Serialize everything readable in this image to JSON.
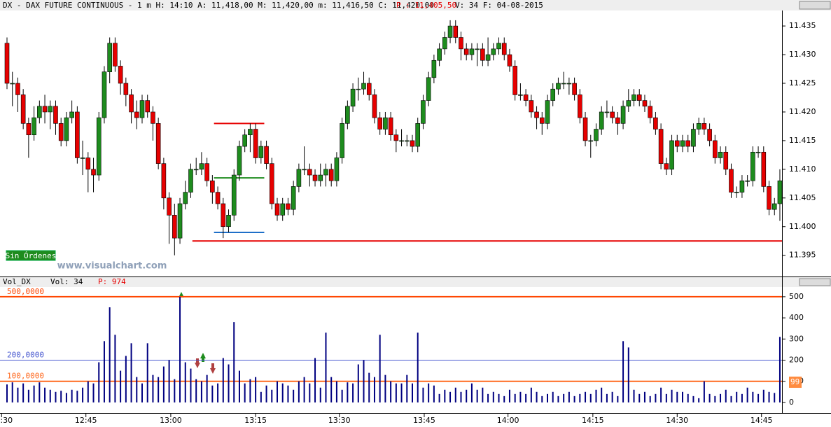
{
  "header": {
    "left": "DX - DAX FUTURE CONTINUOUS -  1 m H: 14:10 A: 11,418,00 M: 11,420,00 m: 11,416,50 C: 11,420,00",
    "price": "P : 11,405,50",
    "right": "V: 34 F: 04-08-2015"
  },
  "orders_button": "Sin Órdenes",
  "watermark": "www.visualchart.com",
  "chart_data": [
    {
      "type": "candlestick",
      "up_color": "#1e8c1e",
      "down_color": "#e60000",
      "xlim": [
        -1.3,
        143.7
      ],
      "xticks": [
        {
          "value": -1.0,
          "label": "12:30"
        },
        {
          "value": 14.6,
          "label": "12:45"
        },
        {
          "value": 30.3,
          "label": "13:00"
        },
        {
          "value": 46,
          "label": "13:15"
        },
        {
          "value": 61.5,
          "label": "13:30"
        },
        {
          "value": 77.2,
          "label": "13:45"
        },
        {
          "value": 92.7,
          "label": "14:00"
        },
        {
          "value": 108.4,
          "label": "14:15"
        },
        {
          "value": 124,
          "label": "14:30"
        },
        {
          "value": 139.6,
          "label": "14:45"
        }
      ],
      "ylim": [
        11391.3,
        11437.7
      ],
      "yticks": [
        {
          "value": 11395,
          "label": "11.395"
        },
        {
          "value": 11400,
          "label": "11.400"
        },
        {
          "value": 11405,
          "label": "11.405"
        },
        {
          "value": 11410,
          "label": "11.410"
        },
        {
          "value": 11415,
          "label": "11.415"
        },
        {
          "value": 11420,
          "label": "11.420"
        },
        {
          "value": 11425,
          "label": "11.425"
        },
        {
          "value": 11430,
          "label": "11.430"
        },
        {
          "value": 11435,
          "label": "11.435"
        }
      ],
      "levels": [
        {
          "value": 11418,
          "color": "#e60000",
          "x": [
            38.3,
            47.6
          ]
        },
        {
          "value": 11408.5,
          "color": "#1e8c1e",
          "x": [
            38.3,
            47.6
          ]
        },
        {
          "value": 11399,
          "color": "#1e6fc8",
          "x": [
            38.3,
            47.6
          ]
        },
        {
          "value": 11397.5,
          "color": "#e60000",
          "x": [
            34.3,
            143.7
          ]
        }
      ],
      "candles": [
        [
          11432,
          11433,
          11424,
          11425
        ],
        [
          11425,
          11427,
          11421,
          11425
        ],
        [
          11425,
          11426,
          11420,
          11423
        ],
        [
          11423,
          11424,
          11417,
          11418
        ],
        [
          11418,
          11419,
          11412,
          11416
        ],
        [
          11416,
          11421,
          11415,
          11419
        ],
        [
          11419,
          11422,
          11418,
          11421
        ],
        [
          11421,
          11423,
          11418,
          11420
        ],
        [
          11420,
          11422,
          11417,
          11421
        ],
        [
          11421,
          11422,
          11416,
          11418
        ],
        [
          11418,
          11419,
          11414,
          11415
        ],
        [
          11415,
          11420,
          11414,
          11419
        ],
        [
          11419,
          11422,
          11418,
          11420
        ],
        [
          11420,
          11421,
          11411,
          11412
        ],
        [
          11412,
          11415,
          11409,
          11412
        ],
        [
          11412,
          11413,
          11406,
          11410
        ],
        [
          11410,
          11412,
          11406,
          11409
        ],
        [
          11409,
          11420,
          11408,
          11419
        ],
        [
          11419,
          11428,
          11418,
          11427
        ],
        [
          11427,
          11433,
          11425,
          11432
        ],
        [
          11432,
          11433,
          11427,
          11428
        ],
        [
          11428,
          11429,
          11423,
          11425
        ],
        [
          11425,
          11426,
          11421,
          11423
        ],
        [
          11423,
          11424,
          11418,
          11420
        ],
        [
          11420,
          11422,
          11417,
          11419
        ],
        [
          11419,
          11423,
          11418,
          11422
        ],
        [
          11422,
          11423,
          11419,
          11420
        ],
        [
          11420,
          11421,
          11415,
          11418
        ],
        [
          11418,
          11419,
          11410,
          11411
        ],
        [
          11411,
          11412,
          11403,
          11405
        ],
        [
          11405,
          11406,
          11397,
          11402
        ],
        [
          11402,
          11404,
          11395,
          11398
        ],
        [
          11398,
          11405,
          11397,
          11404
        ],
        [
          11404,
          11408,
          11403,
          11406
        ],
        [
          11406,
          11411,
          11405,
          11410
        ],
        [
          11410,
          11412,
          11409,
          11410
        ],
        [
          11410,
          11413,
          11409,
          11411
        ],
        [
          11411,
          11412,
          11407,
          11408
        ],
        [
          11408,
          11409,
          11404,
          11406
        ],
        [
          11406,
          11407,
          11403,
          11404
        ],
        [
          11404,
          11405,
          11398,
          11400
        ],
        [
          11400,
          11403,
          11399,
          11402
        ],
        [
          11402,
          11410,
          11401,
          11409
        ],
        [
          11409,
          11415,
          11408,
          11414
        ],
        [
          11414,
          11417,
          11413,
          11416
        ],
        [
          11416,
          11418,
          11413,
          11417
        ],
        [
          11417,
          11418,
          11411,
          11412
        ],
        [
          11412,
          11415,
          11411,
          11414
        ],
        [
          11414,
          11415,
          11410,
          11411
        ],
        [
          11411,
          11412,
          11403,
          11404
        ],
        [
          11404,
          11405,
          11401,
          11402
        ],
        [
          11402,
          11405,
          11401,
          11404
        ],
        [
          11404,
          11405,
          11402,
          11403
        ],
        [
          11403,
          11408,
          11402,
          11407
        ],
        [
          11407,
          11411,
          11406,
          11410
        ],
        [
          11410,
          11414,
          11409,
          11410
        ],
        [
          11410,
          11411,
          11407,
          11409
        ],
        [
          11409,
          11410,
          11407,
          11408
        ],
        [
          11408,
          11411,
          11407,
          11409
        ],
        [
          11409,
          11411,
          11407,
          11410
        ],
        [
          11410,
          11411,
          11407,
          11408
        ],
        [
          11408,
          11413,
          11407,
          11412
        ],
        [
          11412,
          11419,
          11411,
          11418
        ],
        [
          11418,
          11422,
          11417,
          11421
        ],
        [
          11421,
          11425,
          11420,
          11424
        ],
        [
          11424,
          11426,
          11422,
          11424
        ],
        [
          11424,
          11427,
          11423,
          11425
        ],
        [
          11425,
          11426,
          11422,
          11423
        ],
        [
          11423,
          11424,
          11418,
          11419
        ],
        [
          11419,
          11420,
          11416,
          11417
        ],
        [
          11417,
          11420,
          11416,
          11419
        ],
        [
          11419,
          11420,
          11415,
          11416
        ],
        [
          11416,
          11417,
          11413,
          11415
        ],
        [
          11415,
          11417,
          11414,
          11415
        ],
        [
          11415,
          11416,
          11414,
          11415
        ],
        [
          11415,
          11416,
          11413,
          11414
        ],
        [
          11414,
          11419,
          11413,
          11418
        ],
        [
          11418,
          11423,
          11417,
          11422
        ],
        [
          11422,
          11427,
          11421,
          11426
        ],
        [
          11426,
          11430,
          11425,
          11429
        ],
        [
          11429,
          11432,
          11428,
          11431
        ],
        [
          11431,
          11434,
          11430,
          11433
        ],
        [
          11433,
          11436,
          11432,
          11435
        ],
        [
          11435,
          11436,
          11432,
          11433
        ],
        [
          11433,
          11434,
          11429,
          11431
        ],
        [
          11431,
          11432,
          11429,
          11430
        ],
        [
          11430,
          11432,
          11429,
          11431
        ],
        [
          11431,
          11432,
          11428,
          11431
        ],
        [
          11431,
          11432,
          11428,
          11429
        ],
        [
          11429,
          11433,
          11428,
          11430
        ],
        [
          11430,
          11432,
          11429,
          11431
        ],
        [
          11431,
          11433,
          11430,
          11432
        ],
        [
          11432,
          11433,
          11429,
          11430
        ],
        [
          11430,
          11431,
          11427,
          11428
        ],
        [
          11428,
          11429,
          11422,
          11423
        ],
        [
          11423,
          11425,
          11422,
          11423
        ],
        [
          11423,
          11424,
          11421,
          11422
        ],
        [
          11422,
          11423,
          11419,
          11420
        ],
        [
          11420,
          11421,
          11417,
          11419
        ],
        [
          11419,
          11420,
          11416,
          11418
        ],
        [
          11418,
          11423,
          11417,
          11422
        ],
        [
          11422,
          11425,
          11421,
          11424
        ],
        [
          11424,
          11426,
          11423,
          11425
        ],
        [
          11425,
          11427,
          11424,
          11425
        ],
        [
          11425,
          11426,
          11423,
          11425
        ],
        [
          11425,
          11426,
          11422,
          11423
        ],
        [
          11423,
          11424,
          11418,
          11419
        ],
        [
          11419,
          11420,
          11414,
          11415
        ],
        [
          11415,
          11416,
          11412,
          11415
        ],
        [
          11415,
          11418,
          11414,
          11417
        ],
        [
          11417,
          11421,
          11416,
          11420
        ],
        [
          11420,
          11422,
          11419,
          11420
        ],
        [
          11420,
          11421,
          11418,
          11419
        ],
        [
          11419,
          11420,
          11416,
          11418
        ],
        [
          11418,
          11422,
          11417,
          11421
        ],
        [
          11421,
          11424,
          11420,
          11422
        ],
        [
          11422,
          11424,
          11421,
          11423
        ],
        [
          11423,
          11424,
          11421,
          11422
        ],
        [
          11422,
          11423,
          11420,
          11421
        ],
        [
          11421,
          11422,
          11418,
          11419
        ],
        [
          11419,
          11420,
          11416,
          11417
        ],
        [
          11417,
          11418,
          11410,
          11411
        ],
        [
          11411,
          11412,
          11409,
          11410
        ],
        [
          11410,
          11416,
          11409,
          11415
        ],
        [
          11415,
          11416,
          11413,
          11414
        ],
        [
          11414,
          11416,
          11413,
          11415
        ],
        [
          11415,
          11416,
          11413,
          11414
        ],
        [
          11414,
          11418,
          11413,
          11417
        ],
        [
          11417,
          11419,
          11416,
          11418
        ],
        [
          11418,
          11419,
          11416,
          11417
        ],
        [
          11417,
          11418,
          11414,
          11415
        ],
        [
          11415,
          11416,
          11411,
          11412
        ],
        [
          11412,
          11414,
          11411,
          11413
        ],
        [
          11413,
          11414,
          11409,
          11410
        ],
        [
          11410,
          11411,
          11405,
          11406
        ],
        [
          11406,
          11407,
          11405,
          11406
        ],
        [
          11406,
          11409,
          11405,
          11408
        ],
        [
          11408,
          11409,
          11407,
          11408
        ],
        [
          11408,
          11414,
          11407,
          11413
        ],
        [
          11413,
          11414,
          11412,
          11413
        ],
        [
          11413,
          11414,
          11406,
          11407
        ],
        [
          11407,
          11408,
          11402,
          11403
        ],
        [
          11403,
          11405,
          11402,
          11404
        ],
        [
          11404,
          11410,
          11401,
          11408
        ]
      ]
    },
    {
      "type": "bar",
      "title": "Vol_DX",
      "stats": "Vol: 34",
      "stats_p": "P: 974",
      "color": "#000080",
      "xlim": [
        -1.3,
        143.7
      ],
      "ylim": [
        -50,
        546
      ],
      "yticks": [
        0,
        100,
        200,
        300,
        400,
        500
      ],
      "value_box": "99",
      "levels": [
        {
          "value": 500,
          "label": "500,0000",
          "color": "#ff4500"
        },
        {
          "value": 200,
          "label": "200,0000",
          "color": "#4a5ad0"
        },
        {
          "value": 100,
          "label": "100,0000",
          "color": "#ff6a20"
        }
      ],
      "values": [
        85,
        95,
        70,
        90,
        60,
        80,
        95,
        70,
        60,
        50,
        55,
        45,
        60,
        55,
        70,
        100,
        90,
        190,
        290,
        450,
        320,
        150,
        220,
        280,
        120,
        90,
        280,
        130,
        120,
        170,
        200,
        110,
        500,
        190,
        160,
        110,
        100,
        130,
        80,
        90,
        210,
        180,
        380,
        150,
        90,
        110,
        120,
        50,
        80,
        60,
        100,
        90,
        80,
        60,
        100,
        120,
        90,
        210,
        70,
        330,
        120,
        100,
        60,
        95,
        90,
        180,
        200,
        140,
        120,
        320,
        130,
        100,
        90,
        90,
        130,
        90,
        330,
        70,
        90,
        80,
        40,
        60,
        50,
        70,
        50,
        60,
        90,
        60,
        70,
        40,
        50,
        40,
        30,
        60,
        40,
        50,
        40,
        70,
        50,
        30,
        40,
        50,
        30,
        40,
        50,
        30,
        40,
        50,
        40,
        60,
        70,
        40,
        50,
        30,
        290,
        260,
        60,
        40,
        50,
        30,
        40,
        70,
        40,
        60,
        50,
        50,
        40,
        30,
        20,
        100,
        40,
        30,
        40,
        60,
        30,
        50,
        40,
        70,
        50,
        40,
        60,
        50,
        45,
        310
      ]
    }
  ]
}
